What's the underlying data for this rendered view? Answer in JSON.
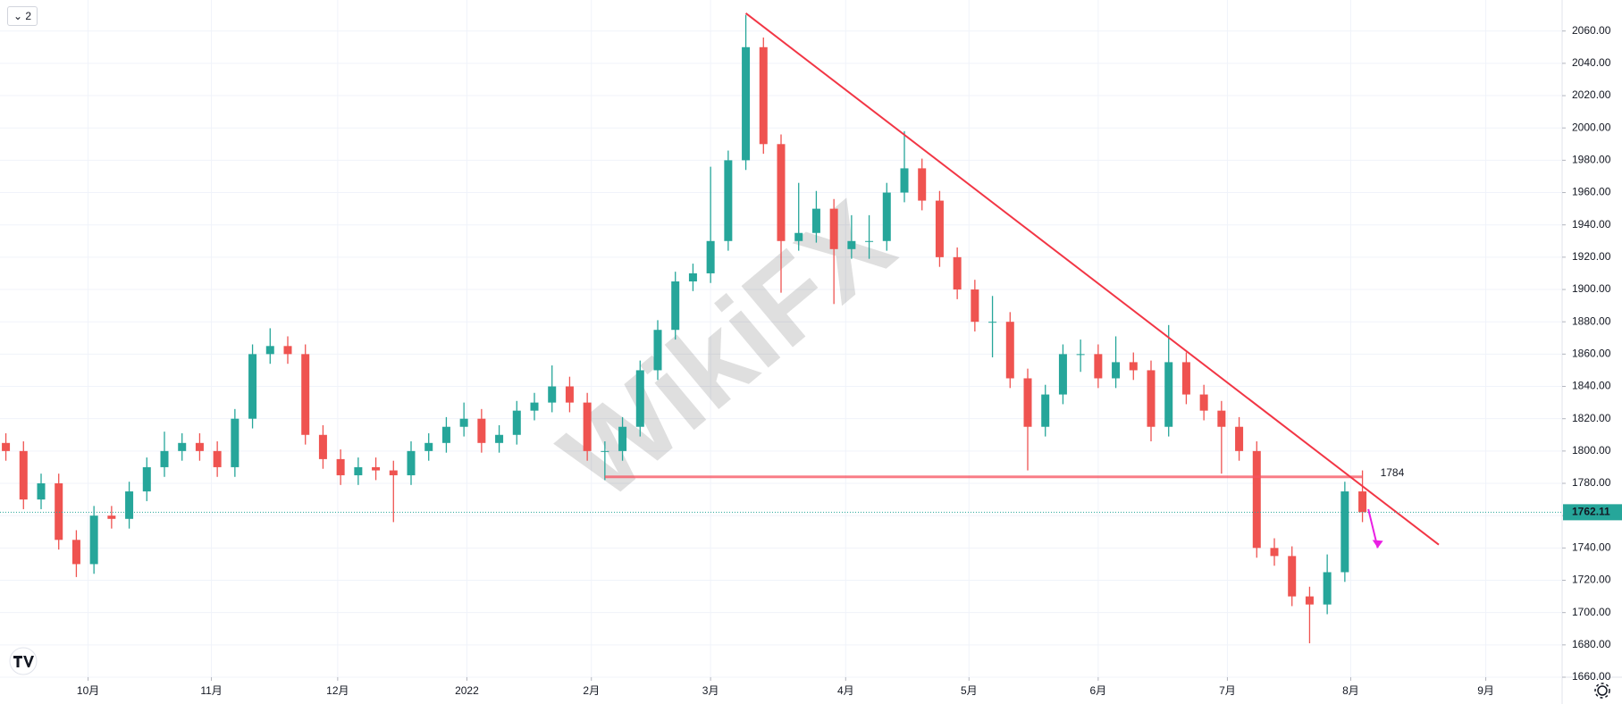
{
  "ui": {
    "badge": "2",
    "watermark": "WikiFX"
  },
  "chart_data": {
    "type": "candlestick",
    "up_color": "#26a69a",
    "down_color": "#ef5350",
    "grid": true,
    "xlim": [
      0,
      266
    ],
    "ylim": [
      1660,
      2079.2
    ],
    "xticks": [
      {
        "value": 15,
        "label": "10月"
      },
      {
        "value": 36,
        "label": "11月"
      },
      {
        "value": 57.5,
        "label": "12月"
      },
      {
        "value": 79.5,
        "label": "2022"
      },
      {
        "value": 100.7,
        "label": "2月"
      },
      {
        "value": 121,
        "label": "3月"
      },
      {
        "value": 144,
        "label": "4月"
      },
      {
        "value": 165,
        "label": "5月"
      },
      {
        "value": 187,
        "label": "6月"
      },
      {
        "value": 209,
        "label": "7月"
      },
      {
        "value": 230,
        "label": "8月"
      },
      {
        "value": 253,
        "label": "9月"
      }
    ],
    "yticks": [
      {
        "value": 1660,
        "label": "1660.00"
      },
      {
        "value": 1680,
        "label": "1680.00"
      },
      {
        "value": 1700,
        "label": "1700.00"
      },
      {
        "value": 1720,
        "label": "1720.00"
      },
      {
        "value": 1740,
        "label": "1740.00"
      },
      {
        "value": 1760,
        "label": "1760.00"
      },
      {
        "value": 1780,
        "label": "1780.00"
      },
      {
        "value": 1800,
        "label": "1800.00"
      },
      {
        "value": 1820,
        "label": "1820.00"
      },
      {
        "value": 1840,
        "label": "1840.00"
      },
      {
        "value": 1860,
        "label": "1860.00"
      },
      {
        "value": 1880,
        "label": "1880.00"
      },
      {
        "value": 1900,
        "label": "1900.00"
      },
      {
        "value": 1920,
        "label": "1920.00"
      },
      {
        "value": 1940,
        "label": "1940.00"
      },
      {
        "value": 1960,
        "label": "1960.00"
      },
      {
        "value": 1980,
        "label": "1980.00"
      },
      {
        "value": 2000,
        "label": "2000.00"
      },
      {
        "value": 2020,
        "label": "2020.00"
      },
      {
        "value": 2040,
        "label": "2040.00"
      },
      {
        "value": 2060,
        "label": "2060.00"
      }
    ],
    "candles": {
      "x": [
        1,
        4,
        7,
        10,
        13,
        16,
        19,
        22,
        25,
        28,
        31,
        34,
        37,
        40,
        43,
        46,
        49,
        52,
        55,
        58,
        61,
        64,
        67,
        70,
        73,
        76,
        79,
        82,
        85,
        88,
        91,
        94,
        97,
        100,
        103,
        106,
        109,
        112,
        115,
        118,
        121,
        124,
        127,
        130,
        133,
        136,
        139,
        142,
        145,
        148,
        151,
        154,
        157,
        160,
        163,
        166,
        169,
        172,
        175,
        178,
        181,
        184,
        187,
        190,
        193,
        196,
        199,
        202,
        205,
        208,
        211,
        214,
        217,
        220,
        223,
        226,
        229,
        232
      ],
      "open": [
        1805,
        1800,
        1770,
        1780,
        1745,
        1730,
        1760,
        1758,
        1775,
        1790,
        1800,
        1805,
        1800,
        1790,
        1820,
        1860,
        1865,
        1860,
        1810,
        1795,
        1785,
        1790,
        1788,
        1785,
        1800,
        1805,
        1815,
        1820,
        1805,
        1810,
        1825,
        1830,
        1840,
        1830,
        1800,
        1800,
        1815,
        1850,
        1875,
        1905,
        1910,
        1930,
        1980,
        2050,
        1990,
        1930,
        1935,
        1950,
        1925,
        1930,
        1930,
        1960,
        1975,
        1955,
        1920,
        1900,
        1880,
        1880,
        1845,
        1815,
        1835,
        1860,
        1860,
        1845,
        1855,
        1850,
        1815,
        1855,
        1835,
        1825,
        1815,
        1800,
        1740,
        1735,
        1710,
        1705,
        1725,
        1775
      ],
      "high": [
        1811,
        1806,
        1786,
        1786,
        1751,
        1766,
        1766,
        1781,
        1796,
        1812,
        1811,
        1811,
        1806,
        1826,
        1866,
        1876,
        1871,
        1866,
        1816,
        1801,
        1796,
        1796,
        1794,
        1806,
        1811,
        1821,
        1830,
        1826,
        1816,
        1831,
        1836,
        1853,
        1846,
        1836,
        1806,
        1821,
        1856,
        1881,
        1911,
        1916,
        1976,
        1986,
        2070,
        2056,
        1996,
        1966,
        1961,
        1956,
        1946,
        1946,
        1966,
        1998,
        1981,
        1961,
        1926,
        1906,
        1896,
        1886,
        1851,
        1841,
        1866,
        1869,
        1866,
        1871,
        1861,
        1856,
        1878,
        1861,
        1841,
        1831,
        1821,
        1806,
        1746,
        1741,
        1716,
        1736,
        1781,
        1788
      ],
      "low": [
        1794,
        1764,
        1764,
        1739,
        1722,
        1724,
        1752,
        1752,
        1769,
        1784,
        1794,
        1794,
        1784,
        1784,
        1814,
        1854,
        1854,
        1804,
        1789,
        1779,
        1779,
        1782,
        1756,
        1779,
        1794,
        1799,
        1809,
        1799,
        1799,
        1804,
        1819,
        1824,
        1824,
        1794,
        1782,
        1794,
        1809,
        1844,
        1869,
        1899,
        1904,
        1924,
        1974,
        1984,
        1898,
        1924,
        1929,
        1891,
        1919,
        1919,
        1924,
        1954,
        1949,
        1914,
        1894,
        1874,
        1858,
        1839,
        1788,
        1809,
        1829,
        1849,
        1839,
        1839,
        1844,
        1806,
        1809,
        1829,
        1819,
        1786,
        1794,
        1734,
        1729,
        1704,
        1681,
        1699,
        1719,
        1756
      ],
      "close": [
        1800,
        1770,
        1780,
        1745,
        1730,
        1760,
        1758,
        1775,
        1790,
        1800,
        1805,
        1800,
        1790,
        1820,
        1860,
        1865,
        1860,
        1810,
        1795,
        1785,
        1790,
        1788,
        1785,
        1800,
        1805,
        1815,
        1820,
        1805,
        1810,
        1825,
        1830,
        1840,
        1830,
        1800,
        1800,
        1815,
        1850,
        1875,
        1905,
        1910,
        1930,
        1980,
        2050,
        1990,
        1930,
        1935,
        1950,
        1925,
        1930,
        1930,
        1960,
        1975,
        1955,
        1920,
        1900,
        1880,
        1880,
        1845,
        1815,
        1835,
        1860,
        1860,
        1845,
        1855,
        1850,
        1815,
        1855,
        1835,
        1825,
        1815,
        1800,
        1740,
        1735,
        1710,
        1705,
        1725,
        1775,
        1762.11
      ]
    },
    "last_price": 1762.11,
    "last_price_color": "#26a69a",
    "trendline": {
      "x": [
        127,
        245
      ],
      "y": [
        2071,
        1742
      ],
      "color": "#f23645"
    },
    "level": {
      "value": 1784,
      "x": [
        103,
        232
      ],
      "color": "#f7525f"
    },
    "arrow": {
      "x": [
        233,
        234.6
      ],
      "y": [
        1764,
        1740
      ],
      "color": "#e91ee3"
    }
  }
}
